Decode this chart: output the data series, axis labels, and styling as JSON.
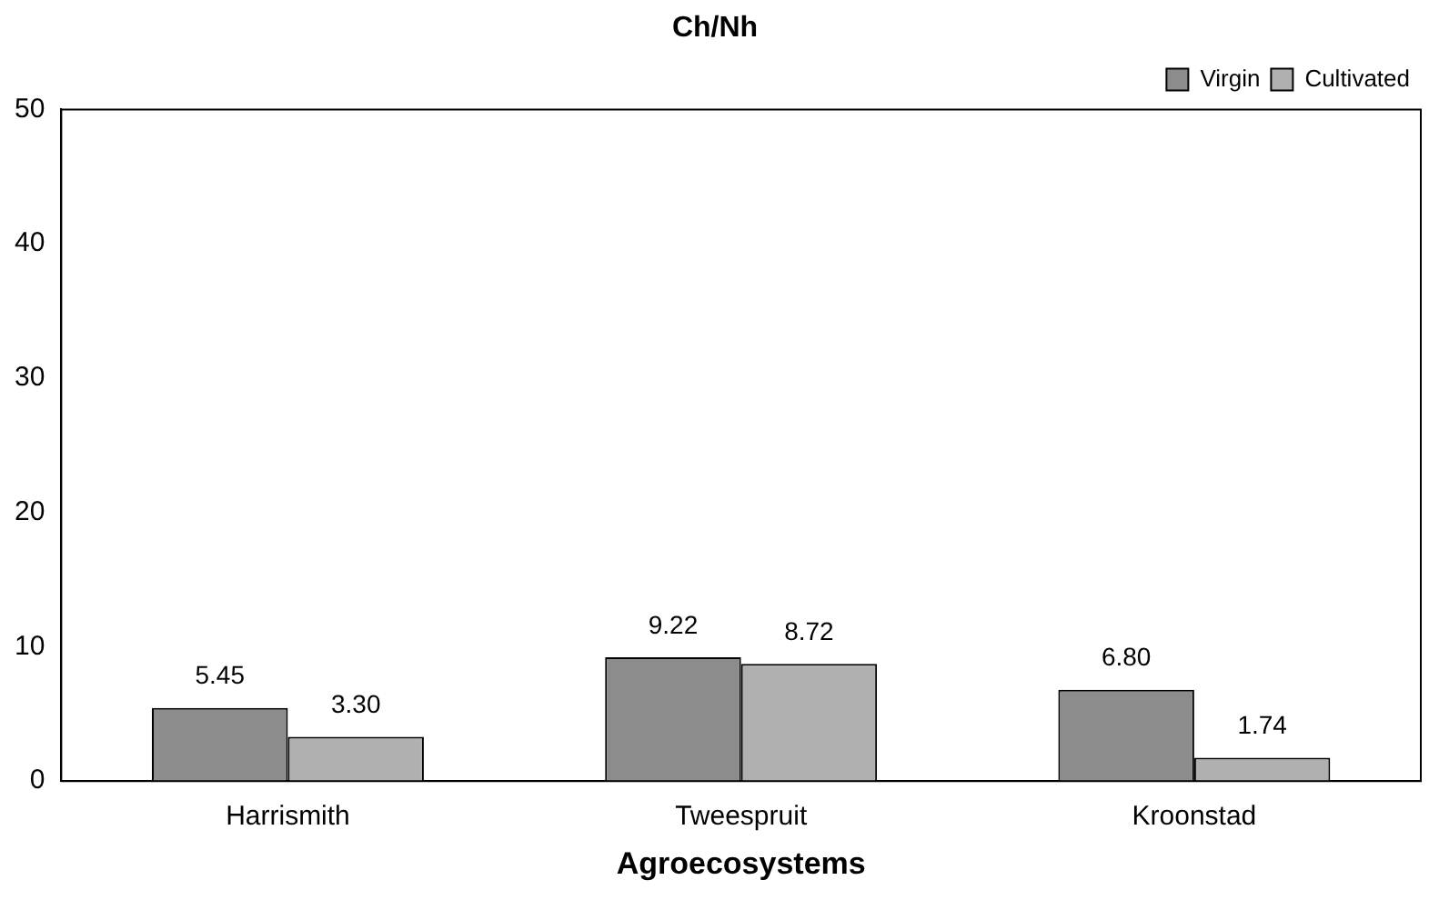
{
  "chart_data": {
    "type": "bar",
    "title": "Ch/Nh",
    "xlabel": "Agroecosystems",
    "categories": [
      "Harrismith",
      "Tweespruit",
      "Kroonstad"
    ],
    "series": [
      {
        "name": "Virgin",
        "color": "#8c8c8c",
        "values": [
          5.45,
          9.22,
          6.8
        ],
        "value_labels": [
          "5.45",
          "9.22",
          "6.80"
        ]
      },
      {
        "name": "Cultivated",
        "color": "#b0b0b0",
        "values": [
          3.3,
          8.72,
          1.74
        ],
        "value_labels": [
          "3.30",
          "8.72",
          "1.74"
        ]
      }
    ],
    "ylim": [
      0,
      50
    ],
    "yticks": [
      0,
      10,
      20,
      30,
      40,
      50
    ],
    "grid": false,
    "legend": "top right"
  }
}
